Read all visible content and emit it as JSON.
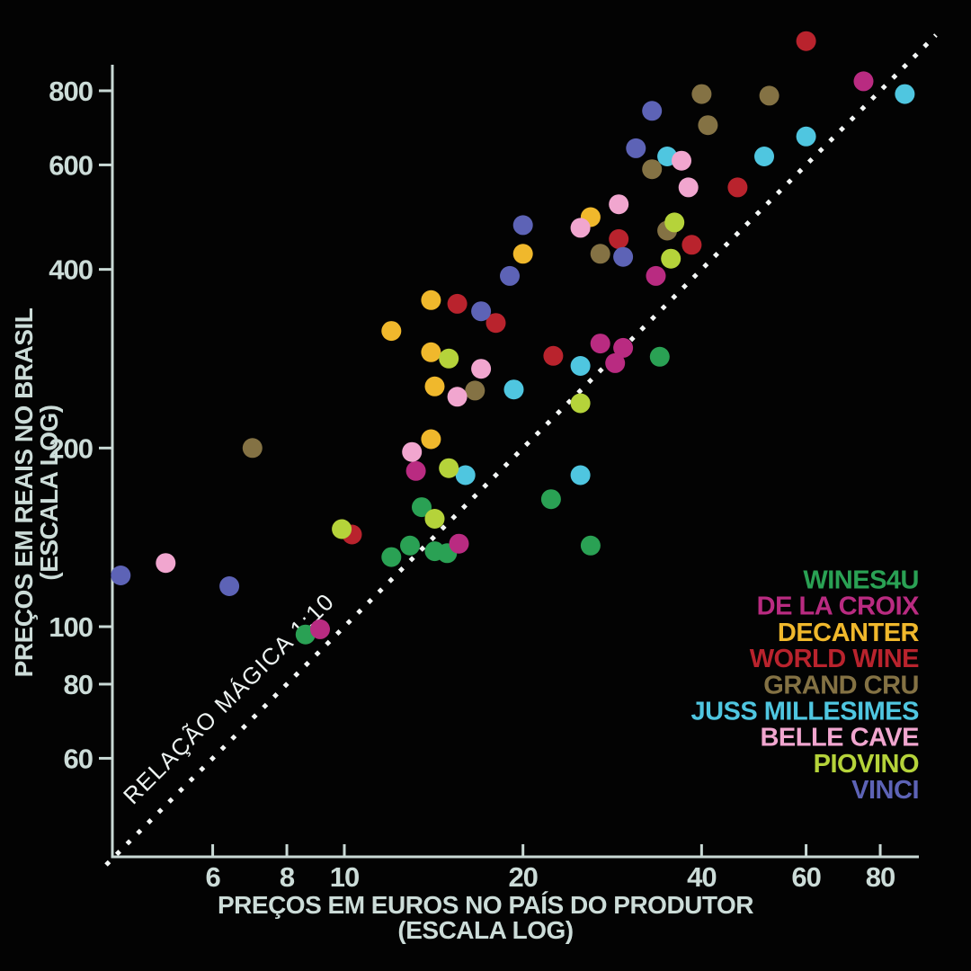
{
  "colors": {
    "background": "#030303",
    "axis": "#c9d9d5",
    "tick_text": "#ccdcd8",
    "reference_line": "#f3f6f5"
  },
  "chart_data": {
    "type": "scatter",
    "x_scale": "log",
    "y_scale": "log",
    "grid": false,
    "xlabel": "PREÇOS EM EUROS NO PAÍS DO PRODUTOR",
    "xlabel_note": "(ESCALA LOG)",
    "ylabel": "PREÇOS EM REAIS NO BRASIL",
    "ylabel_note": "(ESCALA LOG)",
    "x_ticks": [
      6,
      8,
      10,
      20,
      40,
      60,
      80
    ],
    "y_ticks": [
      60,
      80,
      100,
      200,
      400,
      600,
      800
    ],
    "x_range": [
      4.05,
      92
    ],
    "y_range": [
      41,
      880
    ],
    "reference_line": {
      "label": "RELAÇÃO MÁGICA 1:10",
      "relation": "reais = 10 x euros",
      "style": "dotted"
    },
    "legend_position": "right-middle",
    "series": [
      {
        "name": "WINES4U",
        "color": "#2aa154",
        "points": [
          [
            34,
            285
          ],
          [
            22.3,
            164
          ],
          [
            26,
            137
          ],
          [
            13.5,
            159
          ],
          [
            12.9,
            137
          ],
          [
            12,
            131
          ],
          [
            14.2,
            134
          ],
          [
            14.9,
            133
          ],
          [
            8.6,
            97
          ]
        ]
      },
      {
        "name": "DE LA CROIX",
        "color": "#b92b81",
        "points": [
          [
            75,
            830
          ],
          [
            33.5,
            390
          ],
          [
            27,
            300
          ],
          [
            29.5,
            295
          ],
          [
            28.6,
            278
          ],
          [
            13.2,
            183
          ],
          [
            15.6,
            138
          ],
          [
            9.1,
            99
          ]
        ]
      },
      {
        "name": "DECANTER",
        "color": "#f0b82c",
        "points": [
          [
            26,
            490
          ],
          [
            20,
            425
          ],
          [
            14,
            355
          ],
          [
            12,
            315
          ],
          [
            14,
            290
          ],
          [
            14.2,
            254
          ],
          [
            14,
            207
          ]
        ]
      },
      {
        "name": "WORLD WINE",
        "color": "#b9232d",
        "points": [
          [
            60,
            970
          ],
          [
            46,
            550
          ],
          [
            38.5,
            440
          ],
          [
            29,
            450
          ],
          [
            22.5,
            286
          ],
          [
            18,
            325
          ],
          [
            15.5,
            350
          ],
          [
            10.3,
            143
          ]
        ]
      },
      {
        "name": "GRAND CRU",
        "color": "#847244",
        "points": [
          [
            40,
            790
          ],
          [
            52,
            785
          ],
          [
            41,
            700
          ],
          [
            33,
            590
          ],
          [
            35,
            465
          ],
          [
            27,
            425
          ],
          [
            16.6,
            250
          ],
          [
            7,
            200
          ]
        ]
      },
      {
        "name": "JUSS MILLESIMES",
        "color": "#4fc6e0",
        "points": [
          [
            88,
            790
          ],
          [
            60,
            670
          ],
          [
            51,
            620
          ],
          [
            35,
            620
          ],
          [
            25,
            275
          ],
          [
            19.3,
            251
          ],
          [
            25,
            180
          ],
          [
            16,
            180
          ]
        ]
      },
      {
        "name": "BELLE CAVE",
        "color": "#f1a6cf",
        "points": [
          [
            37,
            610
          ],
          [
            38,
            550
          ],
          [
            29,
            515
          ],
          [
            25,
            470
          ],
          [
            17,
            272
          ],
          [
            15.5,
            244
          ],
          [
            13,
            197
          ],
          [
            5,
            128
          ]
        ]
      },
      {
        "name": "PIOVINO",
        "color": "#b5d33a",
        "points": [
          [
            36,
            480
          ],
          [
            35.5,
            417
          ],
          [
            15,
            283
          ],
          [
            25,
            238
          ],
          [
            15,
            185
          ],
          [
            14.2,
            152
          ],
          [
            9.9,
            146
          ]
        ]
      },
      {
        "name": "VINCI",
        "color": "#5d63b6",
        "points": [
          [
            33,
            740
          ],
          [
            31,
            640
          ],
          [
            29.5,
            420
          ],
          [
            20,
            475
          ],
          [
            19,
            390
          ],
          [
            17,
            340
          ],
          [
            6.4,
            117
          ],
          [
            4.2,
            122
          ]
        ]
      }
    ]
  }
}
